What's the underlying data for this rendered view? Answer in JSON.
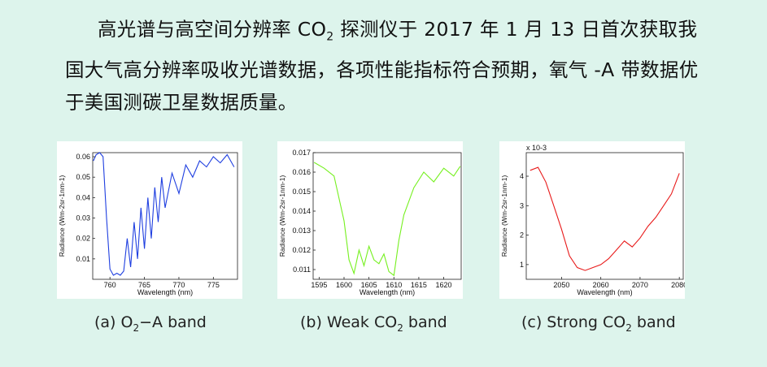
{
  "paragraph": {
    "line1": "高光谱与高空间分辨率 CO",
    "line1_sub": "2",
    "line1_rest": " 探测仪于 2017 年 1 月 13 日首次获取我",
    "line2": "国大气高分辨率吸收光谱数据，各项性能指标符合预期，氧气 -A 带数据优",
    "line3": "于美国测碳卫星数据质量。"
  },
  "captions": {
    "a_prefix": "(a)  O",
    "a_sub": "2",
    "a_suffix": "−A band",
    "b_prefix": "(b)  Weak CO",
    "b_sub": "2",
    "b_suffix": " band",
    "c_prefix": "(c)  Strong CO",
    "c_sub": "2",
    "c_suffix": " band"
  },
  "chart_data": [
    {
      "type": "line",
      "title": "O2-A band",
      "xlabel": "Wavelength (nm)",
      "ylabel": "Radiance (Wm-2sr-1nm-1)",
      "xlim": [
        757.5,
        778.5
      ],
      "ylim": [
        0,
        0.062
      ],
      "xticks": [
        "760",
        "765",
        "770",
        "775"
      ],
      "yticks": [
        "0.01",
        "0.02",
        "0.03",
        "0.04",
        "0.05",
        "0.06"
      ],
      "color": "#1f3fe0",
      "series": [
        {
          "name": "O2-A",
          "x": [
            757.6,
            758.0,
            758.5,
            759.0,
            759.5,
            760.0,
            760.5,
            761.0,
            761.5,
            762.0,
            762.5,
            763.0,
            763.5,
            764.0,
            764.5,
            765.0,
            765.5,
            766.0,
            766.5,
            767.0,
            767.5,
            768.0,
            769.0,
            770.0,
            771.0,
            772.0,
            773.0,
            774.0,
            775.0,
            776.0,
            777.0,
            778.0
          ],
          "y": [
            0.058,
            0.061,
            0.062,
            0.06,
            0.03,
            0.005,
            0.002,
            0.003,
            0.002,
            0.004,
            0.02,
            0.006,
            0.028,
            0.01,
            0.035,
            0.015,
            0.04,
            0.02,
            0.045,
            0.028,
            0.05,
            0.035,
            0.052,
            0.042,
            0.056,
            0.05,
            0.058,
            0.055,
            0.06,
            0.057,
            0.061,
            0.055
          ]
        }
      ]
    },
    {
      "type": "line",
      "title": "Weak CO2 band",
      "xlabel": "Wavelength (nm)",
      "ylabel": "Radiance (Wm-2sr-1nm-1)",
      "xlim": [
        1593.8,
        1623.5
      ],
      "ylim": [
        0.0105,
        0.017
      ],
      "xticks": [
        "1595",
        "1600",
        "1605",
        "1610",
        "1615",
        "1620"
      ],
      "yticks": [
        "0.011",
        "0.012",
        "0.013",
        "0.014",
        "0.015",
        "0.016",
        "0.017"
      ],
      "color": "#76f020",
      "series": [
        {
          "name": "Weak CO2",
          "x": [
            1594,
            1596,
            1598,
            1600,
            1601,
            1602,
            1603,
            1604,
            1605,
            1606,
            1607,
            1608,
            1609,
            1610,
            1611,
            1612,
            1614,
            1616,
            1618,
            1620,
            1622,
            1623.3
          ],
          "y": [
            0.0165,
            0.0162,
            0.0158,
            0.0135,
            0.0115,
            0.0108,
            0.012,
            0.0112,
            0.0122,
            0.0115,
            0.0113,
            0.0118,
            0.0109,
            0.0107,
            0.0125,
            0.0138,
            0.0152,
            0.016,
            0.0155,
            0.0162,
            0.0158,
            0.0163
          ]
        }
      ]
    },
    {
      "type": "line",
      "title": "Strong CO2 band",
      "xlabel": "Wavelength (nm)",
      "ylabel": "Radiance (Wm-2sr-1nm-1)",
      "multiplier": "x 10-3",
      "xlim": [
        2041,
        2081
      ],
      "ylim": [
        0.5,
        4.8
      ],
      "xticks": [
        "2050",
        "2060",
        "2070",
        "2080"
      ],
      "yticks": [
        "1",
        "2",
        "3",
        "4"
      ],
      "color": "#e81a1a",
      "series": [
        {
          "name": "Strong CO2",
          "x": [
            2042,
            2044,
            2046,
            2048,
            2050,
            2052,
            2054,
            2056,
            2058,
            2060,
            2062,
            2064,
            2066,
            2068,
            2070,
            2072,
            2074,
            2076,
            2078,
            2080
          ],
          "y": [
            4.2,
            4.3,
            3.8,
            3.0,
            2.2,
            1.3,
            0.9,
            0.8,
            0.9,
            1.0,
            1.2,
            1.5,
            1.8,
            1.6,
            1.9,
            2.3,
            2.6,
            3.0,
            3.4,
            4.1
          ]
        }
      ]
    }
  ]
}
